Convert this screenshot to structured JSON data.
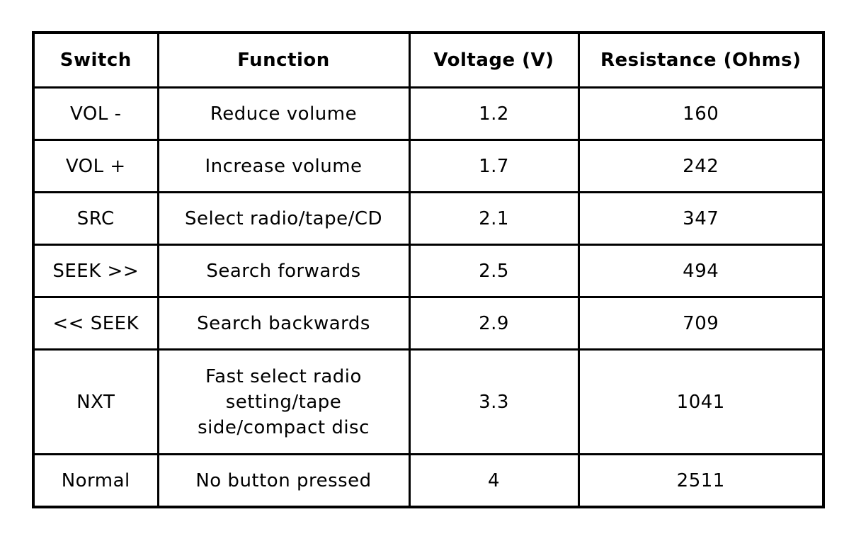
{
  "table": {
    "headers": [
      "Switch",
      "Function",
      "Voltage (V)",
      "Resistance (Ohms)"
    ],
    "rows": [
      {
        "switch": "VOL -",
        "function": "Reduce volume",
        "voltage": "1.2",
        "resistance": "160"
      },
      {
        "switch": "VOL +",
        "function": "Increase volume",
        "voltage": "1.7",
        "resistance": "242"
      },
      {
        "switch": "SRC",
        "function": "Select radio/tape/CD",
        "voltage": "2.1",
        "resistance": "347"
      },
      {
        "switch": "SEEK >>",
        "function": "Search forwards",
        "voltage": "2.5",
        "resistance": "494"
      },
      {
        "switch": "<< SEEK",
        "function": "Search backwards",
        "voltage": "2.9",
        "resistance": "709"
      },
      {
        "switch": "NXT",
        "function_lines": [
          "Fast select radio",
          "setting/tape",
          "side/compact disc"
        ],
        "voltage": "3.3",
        "resistance": "1041"
      },
      {
        "switch": "Normal",
        "function": "No button pressed",
        "voltage": "4",
        "resistance": "2511"
      }
    ]
  }
}
